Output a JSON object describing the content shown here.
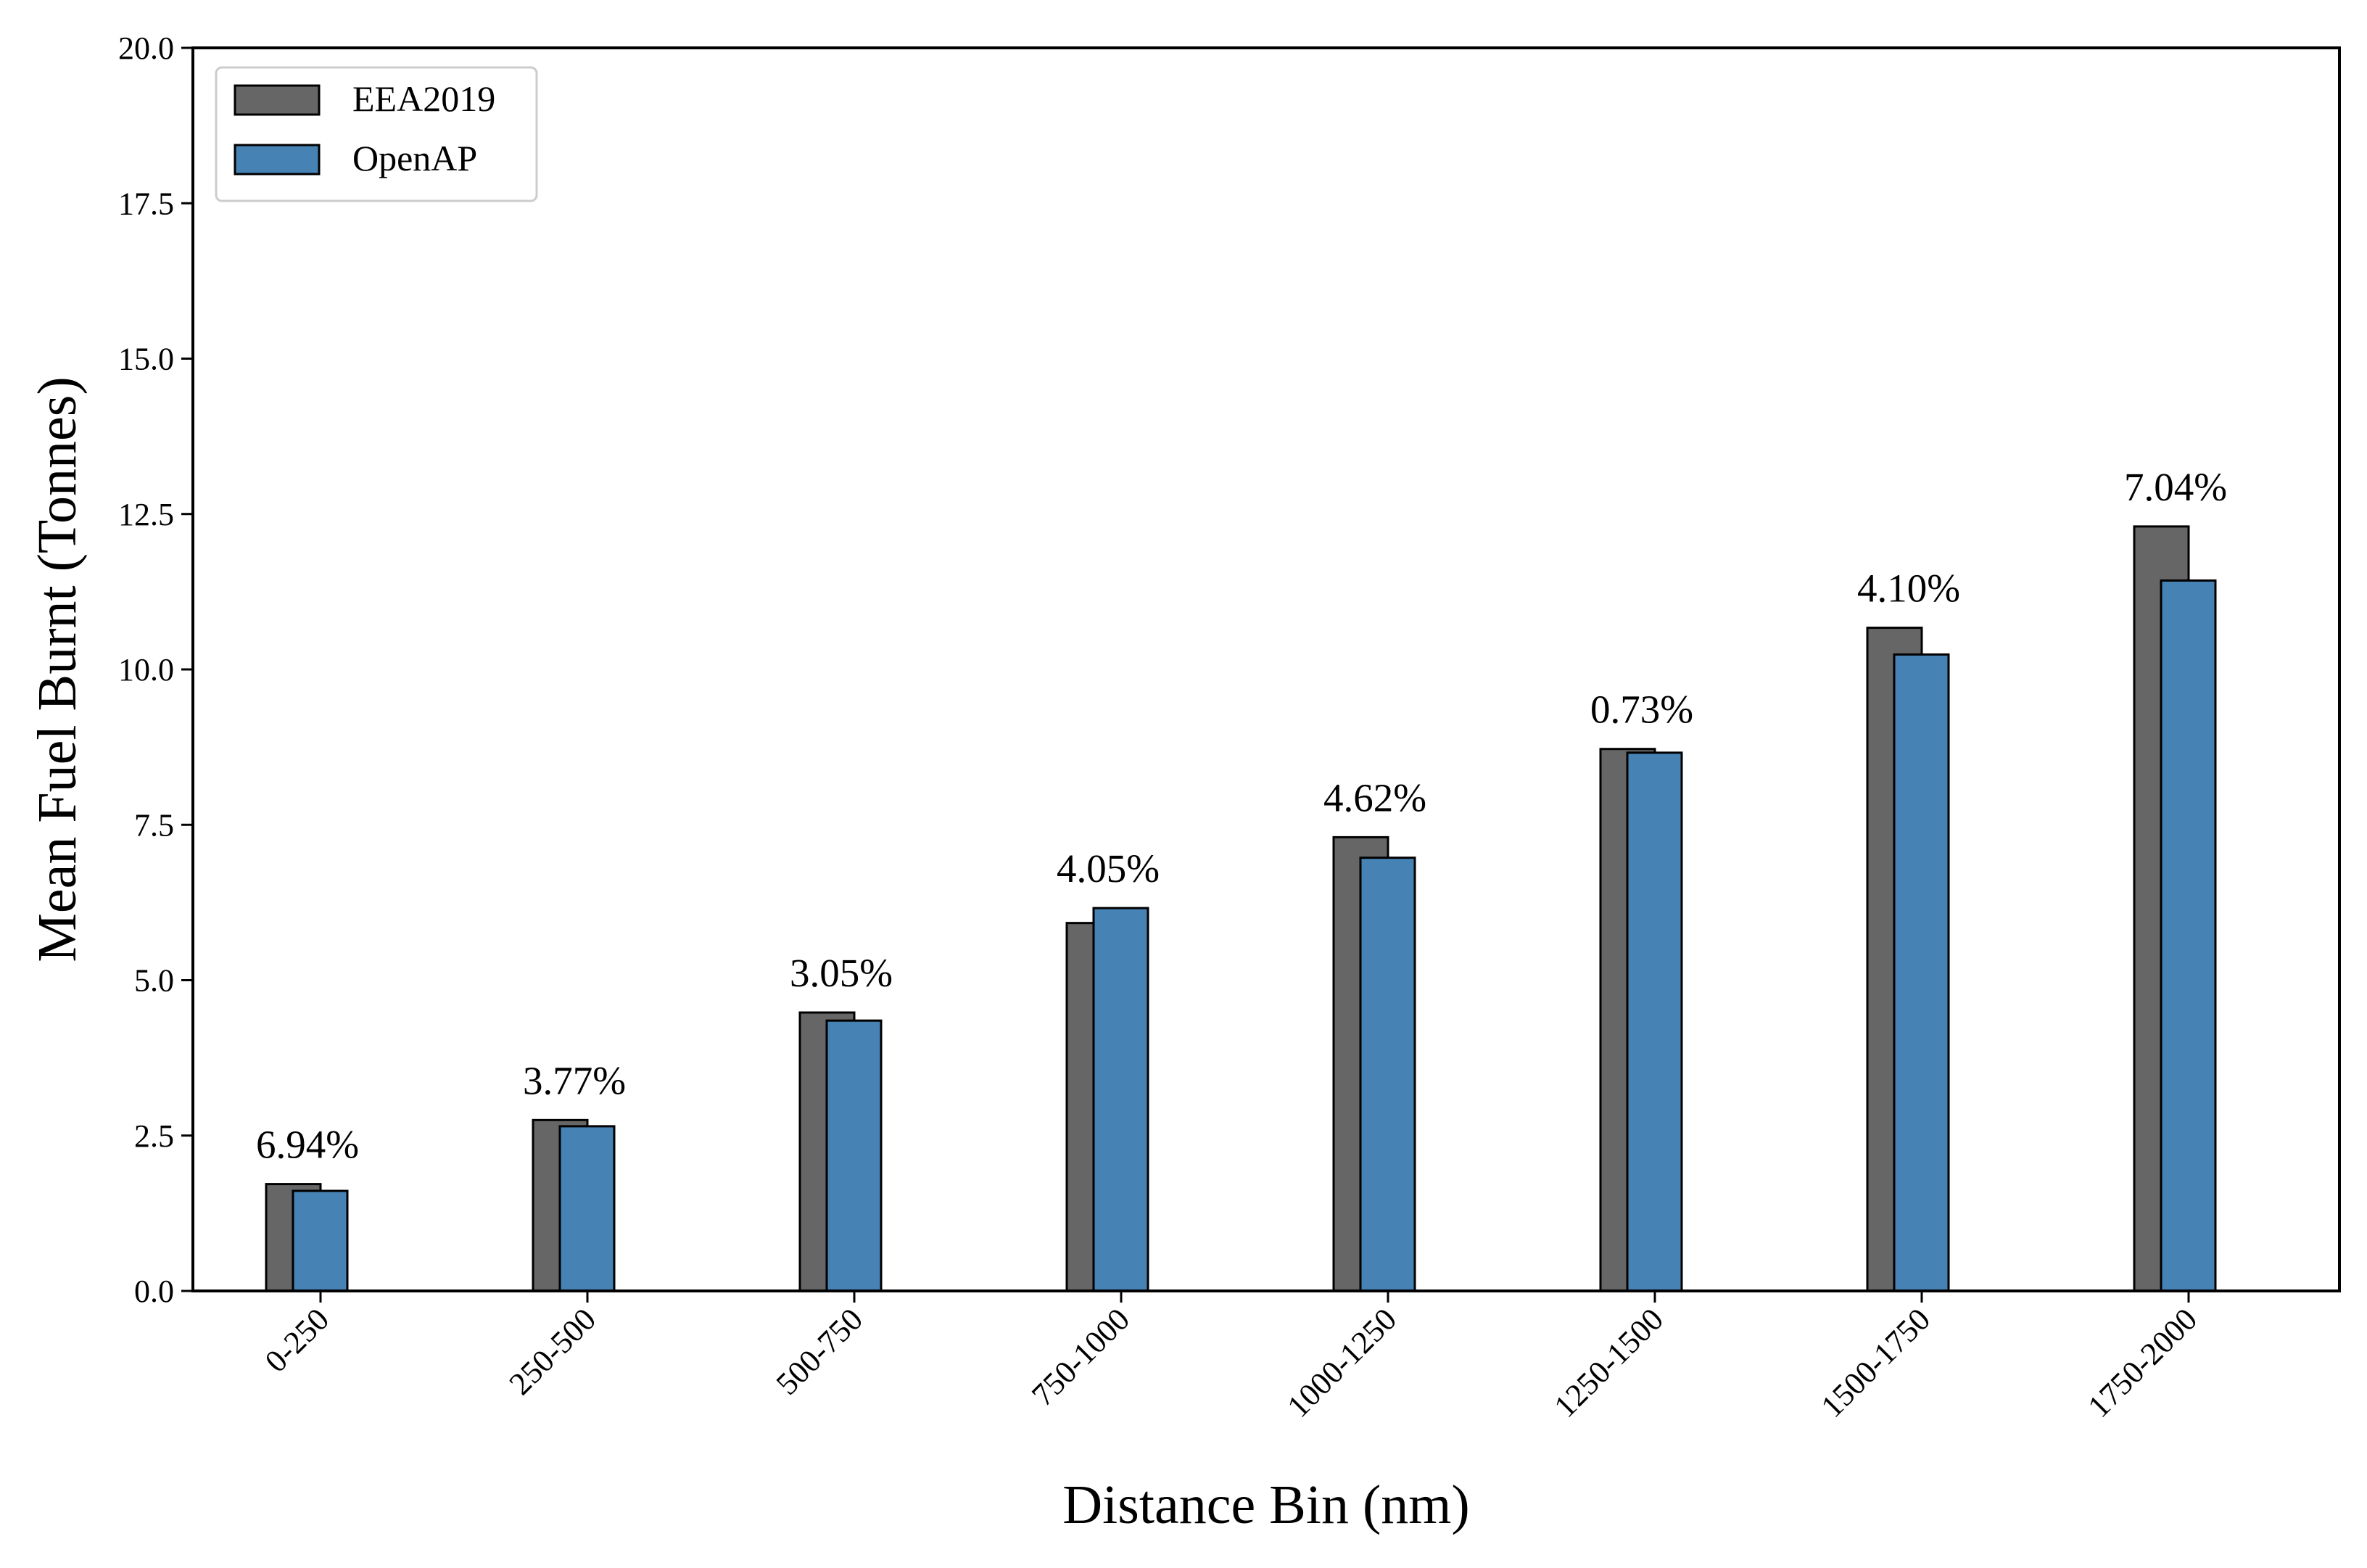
{
  "chart_data": {
    "type": "bar",
    "title": "",
    "xlabel": "Distance Bin (nm)",
    "ylabel": "Mean Fuel Burnt (Tonnes)",
    "ylim": [
      0,
      20
    ],
    "yticks": [
      "0.0",
      "2.5",
      "5.0",
      "7.5",
      "10.0",
      "12.5",
      "15.0",
      "17.5",
      "20.0"
    ],
    "categories": [
      "0-250",
      "250-500",
      "500-750",
      "750-1000",
      "1000-1250",
      "1250-1500",
      "1500-1750",
      "1750-2000"
    ],
    "series": [
      {
        "name": "EEA2019",
        "color": "#666666",
        "values": [
          1.72,
          2.75,
          4.48,
          5.92,
          7.3,
          8.72,
          10.67,
          12.3
        ]
      },
      {
        "name": "OpenAP",
        "color": "#4682b4",
        "values": [
          1.61,
          2.65,
          4.35,
          6.16,
          6.97,
          8.66,
          10.24,
          11.43
        ]
      }
    ],
    "annotations": [
      "6.94%",
      "3.77%",
      "3.05%",
      "4.05%",
      "4.62%",
      "0.73%",
      "4.10%",
      "7.04%"
    ],
    "legend": {
      "position": "top-left"
    },
    "grid": false
  }
}
